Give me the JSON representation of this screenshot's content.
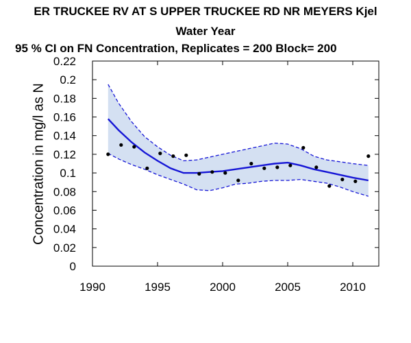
{
  "chart_data": {
    "type": "line",
    "title": "ER TRUCKEE RV AT S UPPER TRUCKEE RD NR MEYERS   Kjel",
    "subtitle": "Water Year",
    "subtitle2": "95 % CI on FN Concentration, Replicates = 200 Block= 200",
    "xlabel": "",
    "ylabel": "Concentration in mg/l as N",
    "xlim": [
      1990,
      2012
    ],
    "ylim": [
      0,
      0.22
    ],
    "xticks": [
      "1990",
      "1995",
      "2000",
      "2005",
      "2010"
    ],
    "yticks": [
      "0",
      "0.02",
      "0.04",
      "0.06",
      "0.08",
      "0.1",
      "0.12",
      "0.14",
      "0.16",
      "0.18",
      "0.2",
      "0.22"
    ],
    "grid": false,
    "colors": {
      "line": "#1515d6",
      "band": "#d4e0f2",
      "points": "#000000"
    },
    "series": [
      {
        "kind": "points",
        "x": [
          1991.2,
          1992.2,
          1993.2,
          1994.2,
          1995.2,
          1996.2,
          1997.2,
          1998.2,
          1999.2,
          2000.2,
          2001.2,
          2002.2,
          2003.2,
          2004.2,
          2005.2,
          2006.2,
          2007.2,
          2008.2,
          2009.2,
          2010.2,
          2011.2
        ],
        "y": [
          0.12,
          0.13,
          0.128,
          0.105,
          0.121,
          0.118,
          0.119,
          0.099,
          0.101,
          0.1,
          0.092,
          0.11,
          0.105,
          0.106,
          0.108,
          0.127,
          0.106,
          0.086,
          0.093,
          0.091,
          0.118
        ]
      },
      {
        "kind": "flux",
        "x": [
          1991.2,
          1992,
          1993,
          1994,
          1995,
          1996,
          1997,
          1998,
          1999,
          2000,
          2001,
          2002,
          2003,
          2004,
          2005,
          2006,
          2007,
          2008,
          2009,
          2010,
          2011.2
        ],
        "y": [
          0.158,
          0.146,
          0.133,
          0.122,
          0.113,
          0.105,
          0.1,
          0.1,
          0.101,
          0.102,
          0.104,
          0.106,
          0.108,
          0.11,
          0.111,
          0.108,
          0.104,
          0.101,
          0.098,
          0.095,
          0.092
        ]
      },
      {
        "kind": "ci_upper",
        "x": [
          1991.2,
          1992,
          1993,
          1994,
          1995,
          1996,
          1997,
          1998,
          1999,
          2000,
          2001,
          2002,
          2003,
          2004,
          2005,
          2006,
          2007,
          2008,
          2009,
          2010,
          2011.2
        ],
        "y": [
          0.195,
          0.175,
          0.155,
          0.139,
          0.128,
          0.119,
          0.113,
          0.114,
          0.117,
          0.12,
          0.123,
          0.126,
          0.129,
          0.132,
          0.131,
          0.126,
          0.118,
          0.114,
          0.112,
          0.11,
          0.108
        ]
      },
      {
        "kind": "ci_lower",
        "x": [
          1991.2,
          1992,
          1993,
          1994,
          1995,
          1996,
          1997,
          1998,
          1999,
          2000,
          2001,
          2002,
          2003,
          2004,
          2005,
          2006,
          2007,
          2008,
          2009,
          2010,
          2011.2
        ],
        "y": [
          0.121,
          0.115,
          0.109,
          0.104,
          0.098,
          0.093,
          0.088,
          0.082,
          0.081,
          0.084,
          0.088,
          0.089,
          0.091,
          0.092,
          0.092,
          0.093,
          0.091,
          0.089,
          0.085,
          0.08,
          0.075
        ]
      }
    ]
  }
}
